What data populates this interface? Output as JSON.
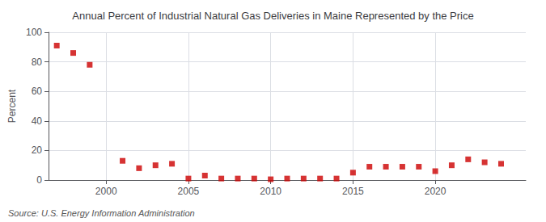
{
  "chart_data": {
    "type": "scatter",
    "title": "Annual Percent of Industrial Natural Gas Deliveries in Maine Represented by the Price",
    "ylabel": "Percent",
    "source": "Source: U.S. Energy Information Administration",
    "x": [
      1997,
      1998,
      1999,
      2001,
      2002,
      2003,
      2004,
      2005,
      2006,
      2007,
      2008,
      2009,
      2010,
      2011,
      2012,
      2013,
      2014,
      2015,
      2016,
      2017,
      2018,
      2019,
      2020,
      2021,
      2022,
      2023,
      2024
    ],
    "values": [
      91,
      86,
      78,
      13,
      8,
      10,
      11,
      1,
      3,
      1,
      1,
      1,
      0.5,
      1,
      1,
      1,
      1,
      5,
      9,
      9,
      9,
      9,
      6,
      10,
      14,
      12,
      11
    ],
    "color": "#cc0000",
    "marker": "square",
    "xlim": [
      1996.5,
      2025.5
    ],
    "xticks": [
      2000,
      2005,
      2010,
      2015,
      2020
    ],
    "ylim": [
      0,
      100
    ],
    "yticks": [
      0,
      20,
      40,
      60,
      80,
      100
    ],
    "grid": true
  }
}
